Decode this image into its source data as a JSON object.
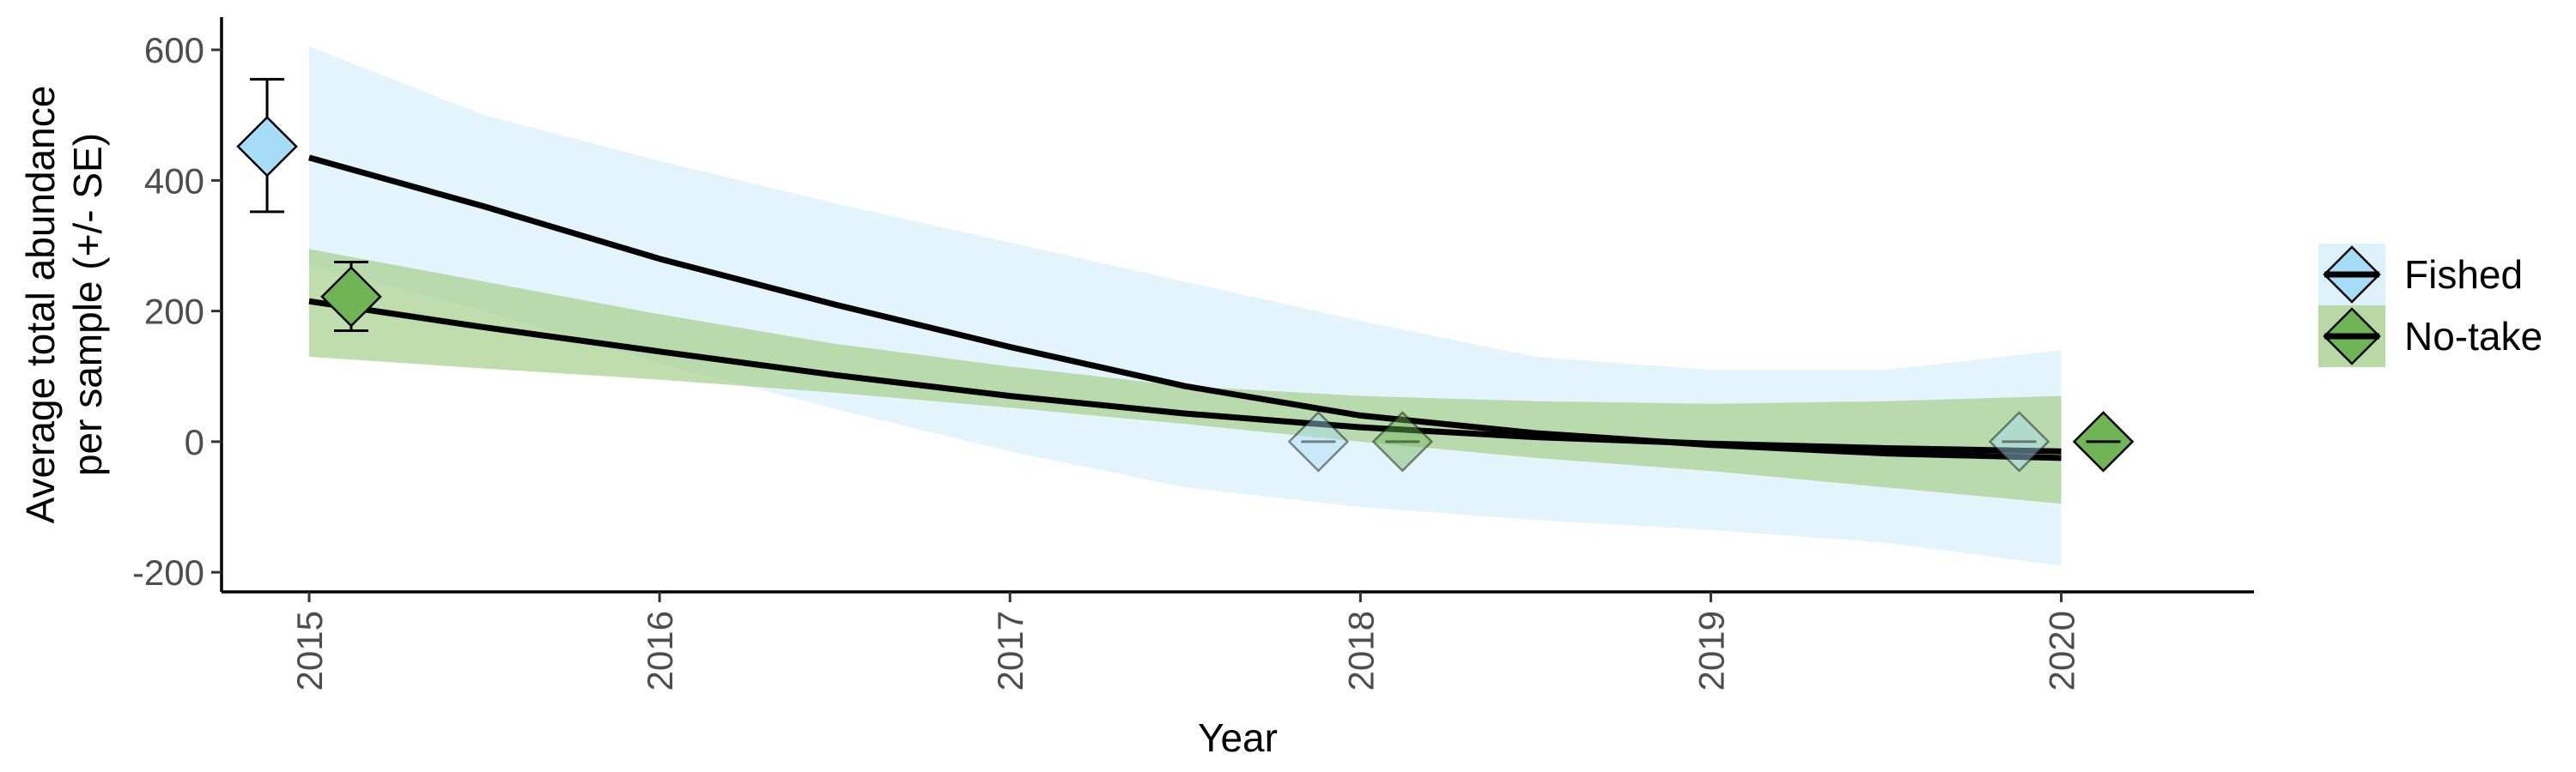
{
  "chart_data": {
    "type": "scatter",
    "title": "",
    "xlabel": "Year",
    "ylabel_lines": [
      "Average total abundance",
      "per sample (+/- SE)"
    ],
    "xlim": [
      2014.75,
      2020.55
    ],
    "ylim": [
      -230,
      650
    ],
    "x_ticks": [
      2015,
      2016,
      2017,
      2018,
      2019,
      2020
    ],
    "y_ticks": [
      -200,
      0,
      200,
      400,
      600
    ],
    "x_tick_labels": [
      "2015",
      "2016",
      "2017",
      "2018",
      "2019",
      "2020"
    ],
    "y_tick_labels": [
      "-200",
      "0",
      "200",
      "400",
      "600"
    ],
    "grid": false,
    "legend_position": "right",
    "series": [
      {
        "name": "Fished",
        "color": "#a6dcf5",
        "band_color": "#d4eefa",
        "points": [
          {
            "x": 2014.88,
            "y": 452,
            "se_low": 352,
            "se_high": 555
          },
          {
            "x": 2017.88,
            "y": 0
          },
          {
            "x": 2019.88,
            "y": 0
          }
        ],
        "fit": {
          "x": [
            2015,
            2015.5,
            2016,
            2016.5,
            2017,
            2017.5,
            2018,
            2018.5,
            2019,
            2019.5,
            2020
          ],
          "y": [
            435,
            360,
            280,
            210,
            145,
            85,
            40,
            13,
            -5,
            -18,
            -25
          ],
          "lower": [
            270,
            200,
            120,
            50,
            -15,
            -70,
            -100,
            -120,
            -135,
            -155,
            -190
          ],
          "upper": [
            605,
            500,
            430,
            365,
            305,
            245,
            185,
            130,
            110,
            110,
            140
          ]
        }
      },
      {
        "name": "No-take",
        "color": "#6fb556",
        "band_color": "#a8d08d",
        "points": [
          {
            "x": 2015.12,
            "y": 222,
            "se_low": 170,
            "se_high": 275
          },
          {
            "x": 2018.12,
            "y": 0
          },
          {
            "x": 2020.12,
            "y": 0
          }
        ],
        "fit": {
          "x": [
            2015,
            2015.5,
            2016,
            2016.5,
            2017,
            2017.5,
            2018,
            2018.5,
            2019,
            2019.5,
            2020
          ],
          "y": [
            215,
            175,
            138,
            102,
            70,
            43,
            22,
            7,
            -3,
            -10,
            -15
          ],
          "lower": [
            130,
            112,
            95,
            75,
            52,
            27,
            0,
            -25,
            -45,
            -70,
            -95
          ],
          "upper": [
            295,
            245,
            195,
            150,
            115,
            85,
            70,
            62,
            58,
            62,
            70
          ]
        }
      }
    ]
  }
}
